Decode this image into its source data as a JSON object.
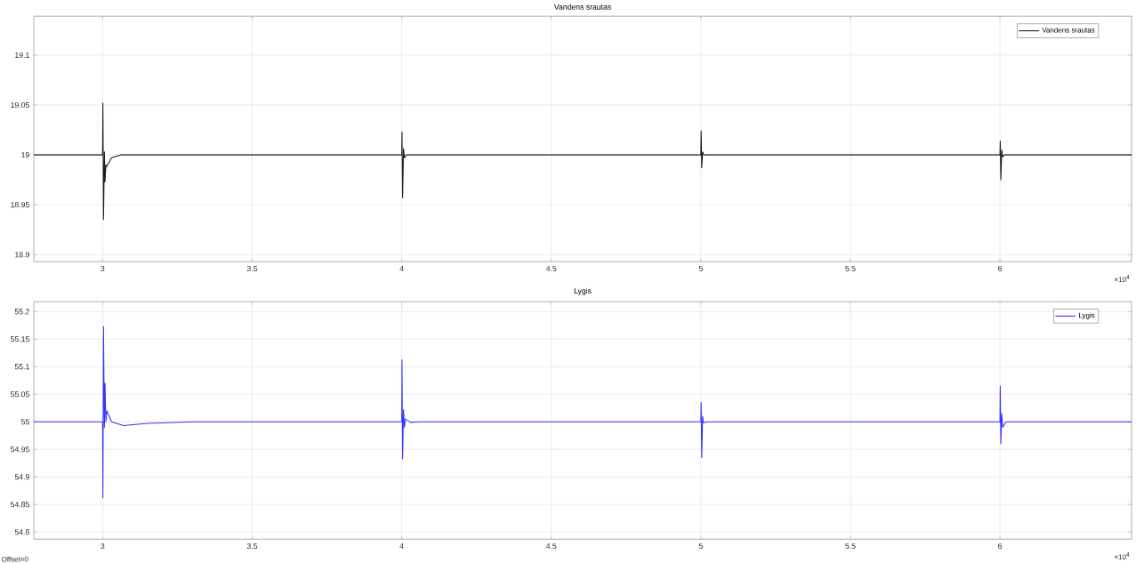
{
  "chart_data": [
    {
      "type": "line",
      "title": "Vandens srautas",
      "grid": true,
      "legend": "top right",
      "marker": "none",
      "line_style": "solid",
      "xlim": [
        2.77,
        6.44
      ],
      "ylim": [
        18.893,
        19.139
      ],
      "xticks": [
        3,
        3.5,
        4,
        4.5,
        5,
        5.5,
        6
      ],
      "yticks": [
        18.9,
        18.95,
        19,
        19.05,
        19.1
      ],
      "annotations": [
        "×10$^{4}$"
      ],
      "series": [
        {
          "name": "Vandens srautas",
          "color": "#1a1a1a",
          "x": [
            2.77,
            3,
            3.001,
            3.003,
            3.006,
            3.008,
            3.011,
            3.013,
            3.03,
            3.06,
            4,
            4.001,
            4.003,
            4.006,
            4.009,
            4.015,
            5,
            5.001,
            5.003,
            5.006,
            5.01,
            6,
            6.001,
            6.003,
            6.006,
            6.009,
            6.015,
            6.44
          ],
          "values": [
            19,
            19,
            19.052,
            18.935,
            19.003,
            18.973,
            18.99,
            18.988,
            18.997,
            19,
            19,
            19.023,
            18.957,
            19.006,
            18.997,
            19,
            19,
            19.024,
            18.987,
            19.003,
            19,
            19,
            19.014,
            18.975,
            19.005,
            18.998,
            19,
            19
          ]
        }
      ]
    },
    {
      "type": "line",
      "title": "Lygis",
      "grid": true,
      "legend": "top right",
      "marker": "none",
      "line_style": "solid",
      "xlim": [
        2.77,
        6.44
      ],
      "ylim": [
        54.787,
        55.218
      ],
      "xticks": [
        3,
        3.5,
        4,
        4.5,
        5,
        5.5,
        6
      ],
      "yticks": [
        54.8,
        54.85,
        54.9,
        54.95,
        55,
        55.05,
        55.1,
        55.15,
        55.2
      ],
      "annotations": [
        "×10$^{4}$",
        "Offset=0"
      ],
      "series": [
        {
          "name": "Lygis",
          "color": "#3333ff",
          "x": [
            2.77,
            3,
            3.001,
            3.003,
            3.006,
            3.008,
            3.011,
            3.014,
            3.03,
            3.07,
            3.15,
            3.3,
            4,
            4.001,
            4.003,
            4.006,
            4.009,
            4.012,
            4.03,
            4.06,
            5,
            5.001,
            5.003,
            5.006,
            5.009,
            5.02,
            6,
            6.001,
            6.003,
            6.006,
            6.009,
            6.02,
            6.44
          ],
          "values": [
            55,
            55,
            54.862,
            55.173,
            54.99,
            55.07,
            55.0,
            55.02,
            55.0,
            54.993,
            54.997,
            55,
            55,
            55.113,
            54.933,
            55.022,
            54.99,
            55.005,
            54.999,
            55,
            55,
            55.035,
            54.935,
            55.01,
            54.998,
            55,
            55,
            55.065,
            54.96,
            55.015,
            54.99,
            55,
            55
          ]
        }
      ]
    }
  ]
}
